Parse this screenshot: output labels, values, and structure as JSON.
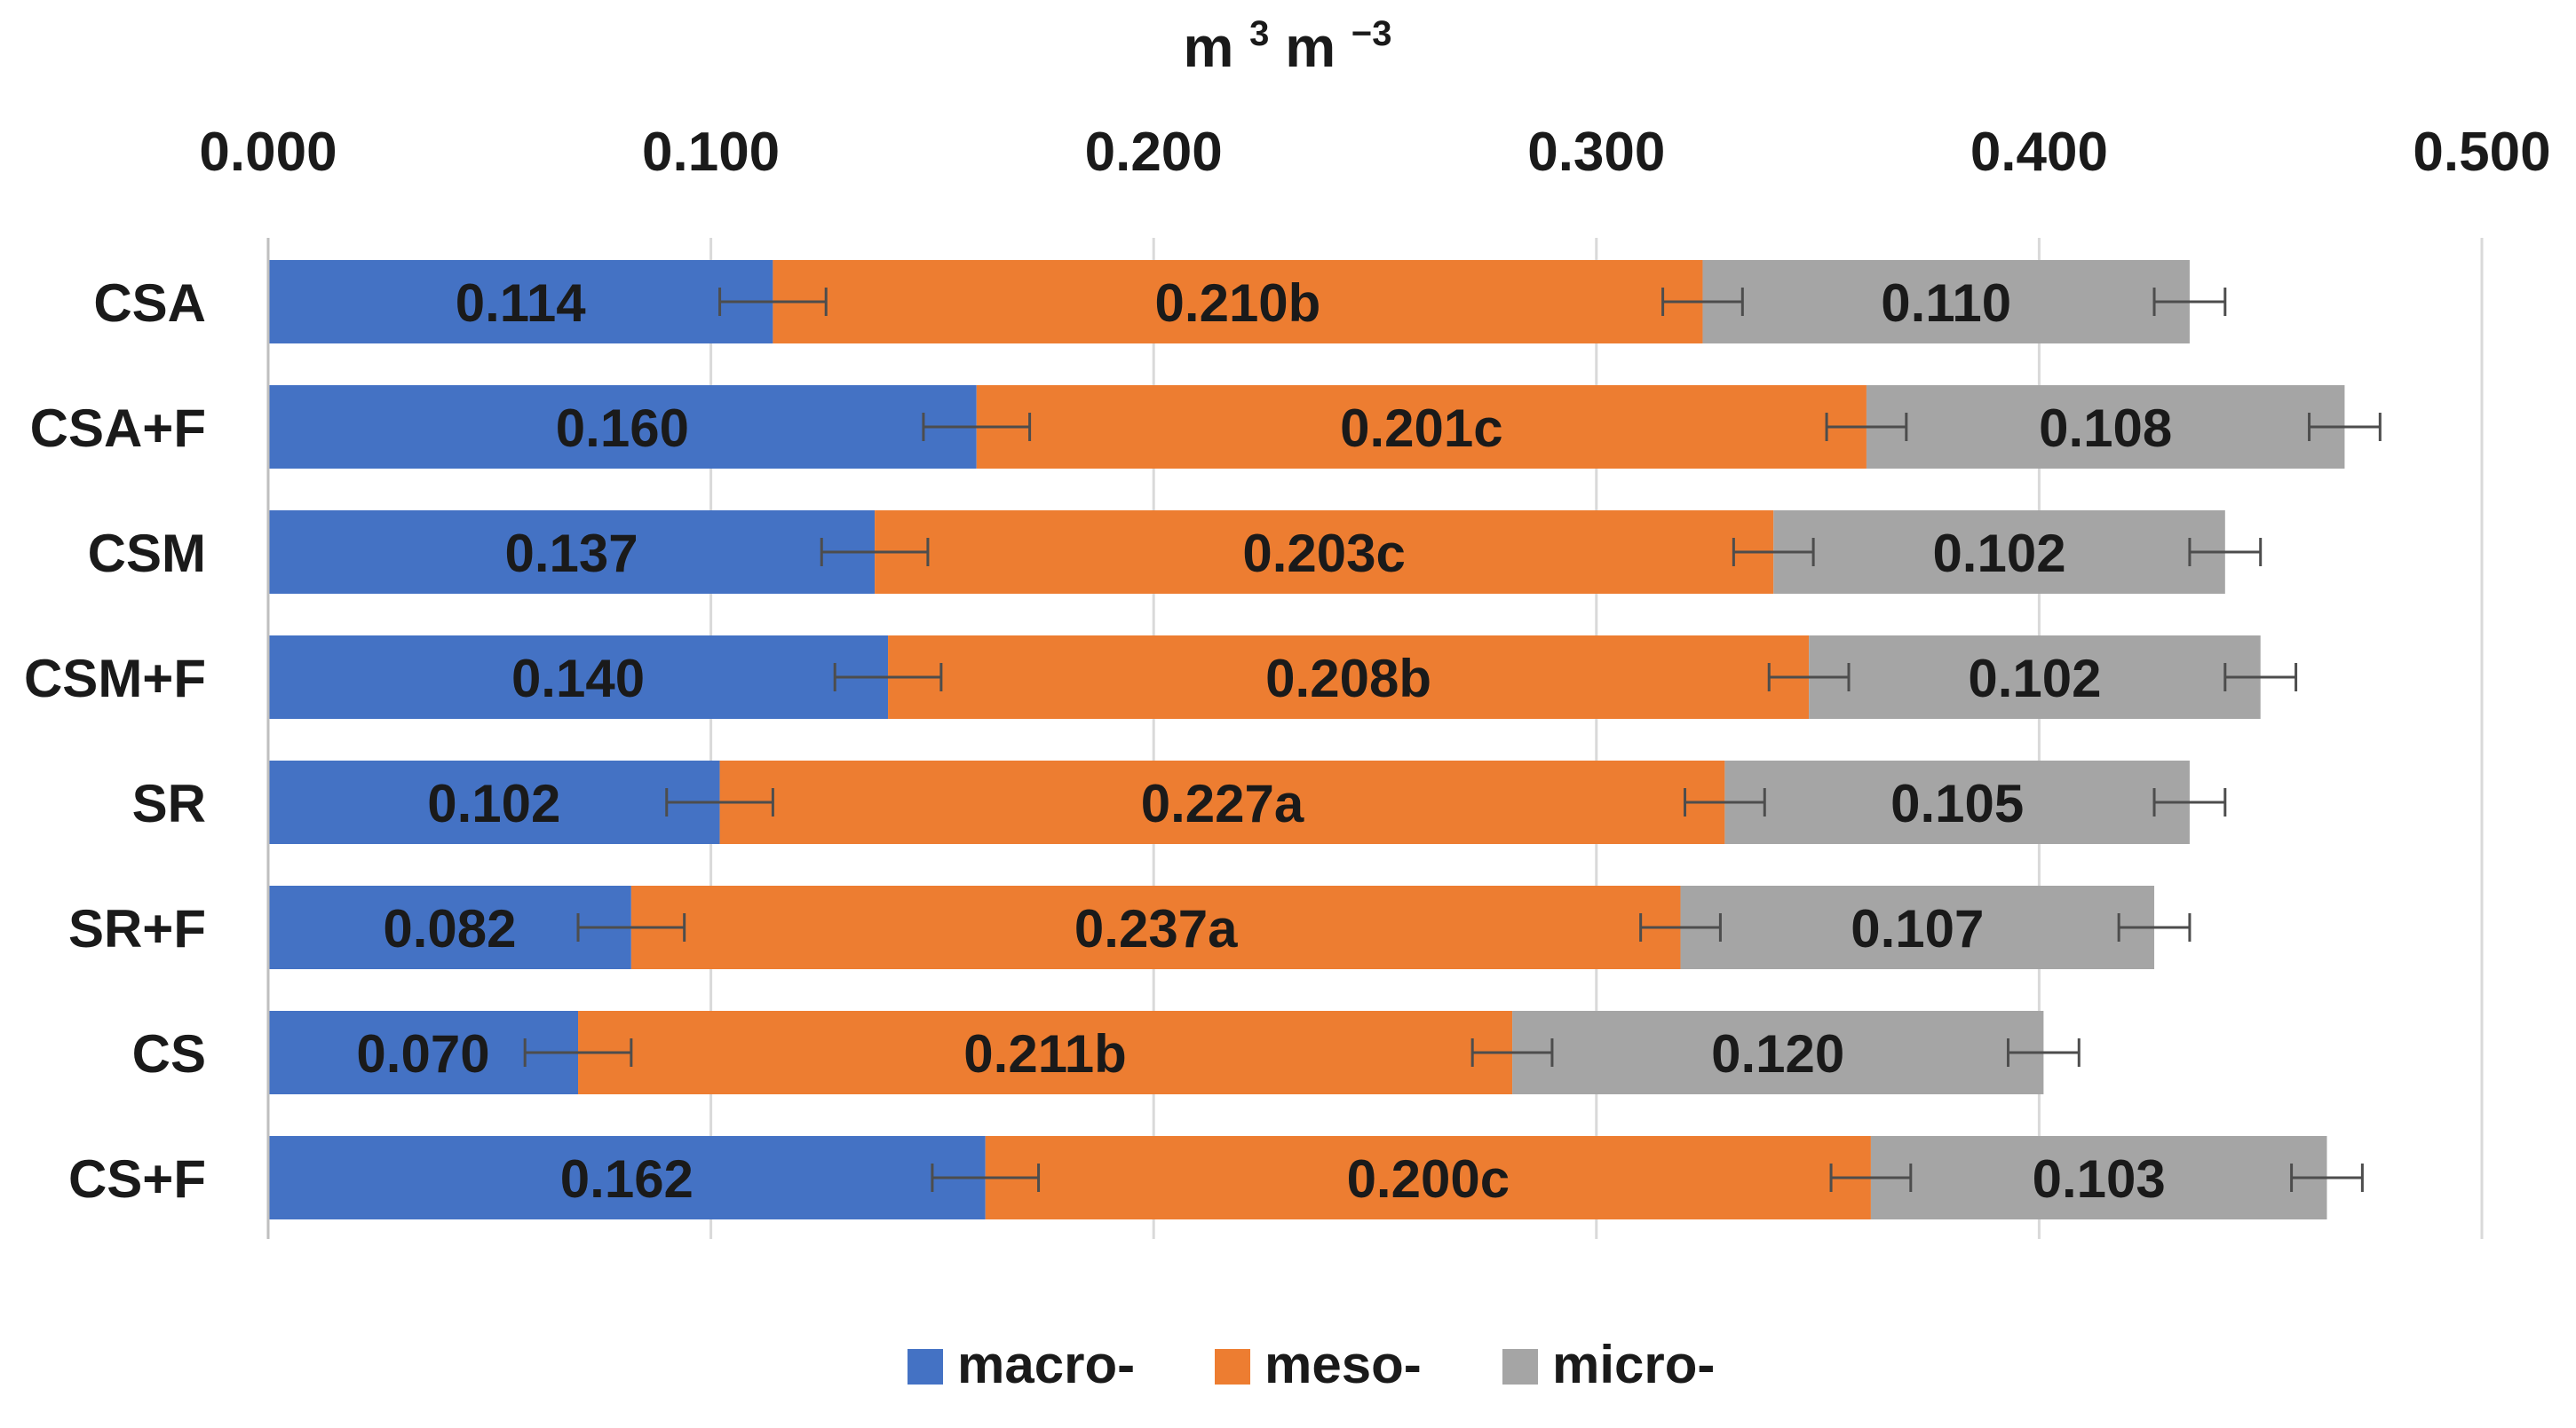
{
  "chart_data": {
    "type": "bar",
    "orientation": "horizontal",
    "stacked": true,
    "title": "",
    "xlabel_main": "m",
    "xlabel_sup1": "3",
    "xlabel_mid": " m",
    "xlabel_sup2": "−3",
    "ylabel": "",
    "xlim": [
      0,
      0.5
    ],
    "xticks": [
      0.0,
      0.1,
      0.2,
      0.3,
      0.4,
      0.5
    ],
    "xtick_labels": [
      "0.000",
      "0.100",
      "0.200",
      "0.300",
      "0.400",
      "0.500"
    ],
    "x_axis_position": "top",
    "grid": "vertical",
    "legend_position": "bottom-center",
    "categories": [
      "CSA",
      "CSA+F",
      "CSM",
      "CSM+F",
      "SR",
      "SR+F",
      "CS",
      "CS+F"
    ],
    "series": [
      {
        "name": "macro-",
        "color": "#4472C4",
        "values": [
          0.114,
          0.16,
          0.137,
          0.14,
          0.102,
          0.082,
          0.07,
          0.162
        ],
        "labels": [
          "0.114",
          "0.160",
          "0.137",
          "0.140",
          "0.102",
          "0.082",
          "0.070",
          "0.162"
        ],
        "error": [
          0.012,
          0.012,
          0.012,
          0.012,
          0.012,
          0.012,
          0.012,
          0.012
        ]
      },
      {
        "name": "meso-",
        "color": "#ED7D31",
        "values": [
          0.21,
          0.201,
          0.203,
          0.208,
          0.227,
          0.237,
          0.211,
          0.2
        ],
        "labels": [
          "0.210b",
          "0.201c",
          "0.203c",
          "0.208b",
          "0.227a",
          "0.237a",
          "0.211b",
          "0.200c"
        ],
        "error": [
          0.009,
          0.009,
          0.009,
          0.009,
          0.009,
          0.009,
          0.009,
          0.009
        ]
      },
      {
        "name": "micro-",
        "color": "#A5A5A5",
        "values": [
          0.11,
          0.108,
          0.102,
          0.102,
          0.105,
          0.107,
          0.12,
          0.103
        ],
        "labels": [
          "0.110",
          "0.108",
          "0.102",
          "0.102",
          "0.105",
          "0.107",
          "0.120",
          "0.103"
        ],
        "error": [
          0.008,
          0.008,
          0.008,
          0.008,
          0.008,
          0.008,
          0.008,
          0.008
        ]
      }
    ]
  }
}
